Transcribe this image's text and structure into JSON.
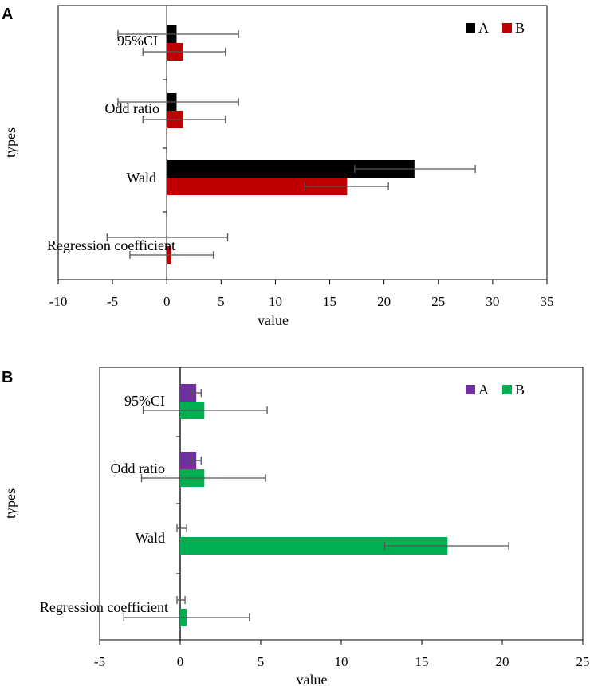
{
  "figure": {
    "panel_labels": [
      "A",
      "B"
    ]
  },
  "chart_data": [
    {
      "panel": "A",
      "type": "bar",
      "orientation": "horizontal",
      "categories": [
        "95%CI",
        "Odd ratio",
        "Wald",
        "Regression coefficient"
      ],
      "series": [
        {
          "name": "A",
          "color": "#000000",
          "values": [
            0.9,
            0.9,
            22.8,
            0.0
          ],
          "error_low": [
            -4.5,
            -4.5,
            17.3,
            -5.5
          ],
          "error_high": [
            6.6,
            6.6,
            28.4,
            5.6
          ]
        },
        {
          "name": "B",
          "color": "#c00000",
          "values": [
            1.5,
            1.5,
            16.6,
            0.4
          ],
          "error_low": [
            -2.2,
            -2.2,
            12.7,
            -3.4
          ],
          "error_high": [
            5.4,
            5.4,
            20.4,
            4.3
          ]
        }
      ],
      "xlabel": "value",
      "ylabel": "types",
      "xlim": [
        -10,
        35
      ],
      "xticks": [
        "-10",
        "-5",
        "0",
        "5",
        "10",
        "15",
        "20",
        "25",
        "30",
        "35"
      ],
      "legend_position": "top-right",
      "grid": false
    },
    {
      "panel": "B",
      "type": "bar",
      "orientation": "horizontal",
      "categories": [
        "95%CI",
        "Odd ratio",
        "Wald",
        "Regression coefficient"
      ],
      "series": [
        {
          "name": "A",
          "color": "#7030a0",
          "values": [
            1.0,
            1.0,
            0.0,
            0.0
          ],
          "error_low": [
            0.7,
            0.7,
            -0.2,
            -0.2
          ],
          "error_high": [
            1.3,
            1.3,
            0.4,
            0.3
          ]
        },
        {
          "name": "B",
          "color": "#00b050",
          "values": [
            1.5,
            1.5,
            16.6,
            0.4
          ],
          "error_low": [
            -2.3,
            -2.4,
            12.7,
            -3.5
          ],
          "error_high": [
            5.4,
            5.3,
            20.4,
            4.3
          ]
        }
      ],
      "xlabel": "value",
      "ylabel": "types",
      "xlim": [
        -5,
        25
      ],
      "xticks": [
        "-5",
        "0",
        "5",
        "10",
        "15",
        "20",
        "25"
      ],
      "legend_position": "top-right",
      "grid": false
    }
  ]
}
